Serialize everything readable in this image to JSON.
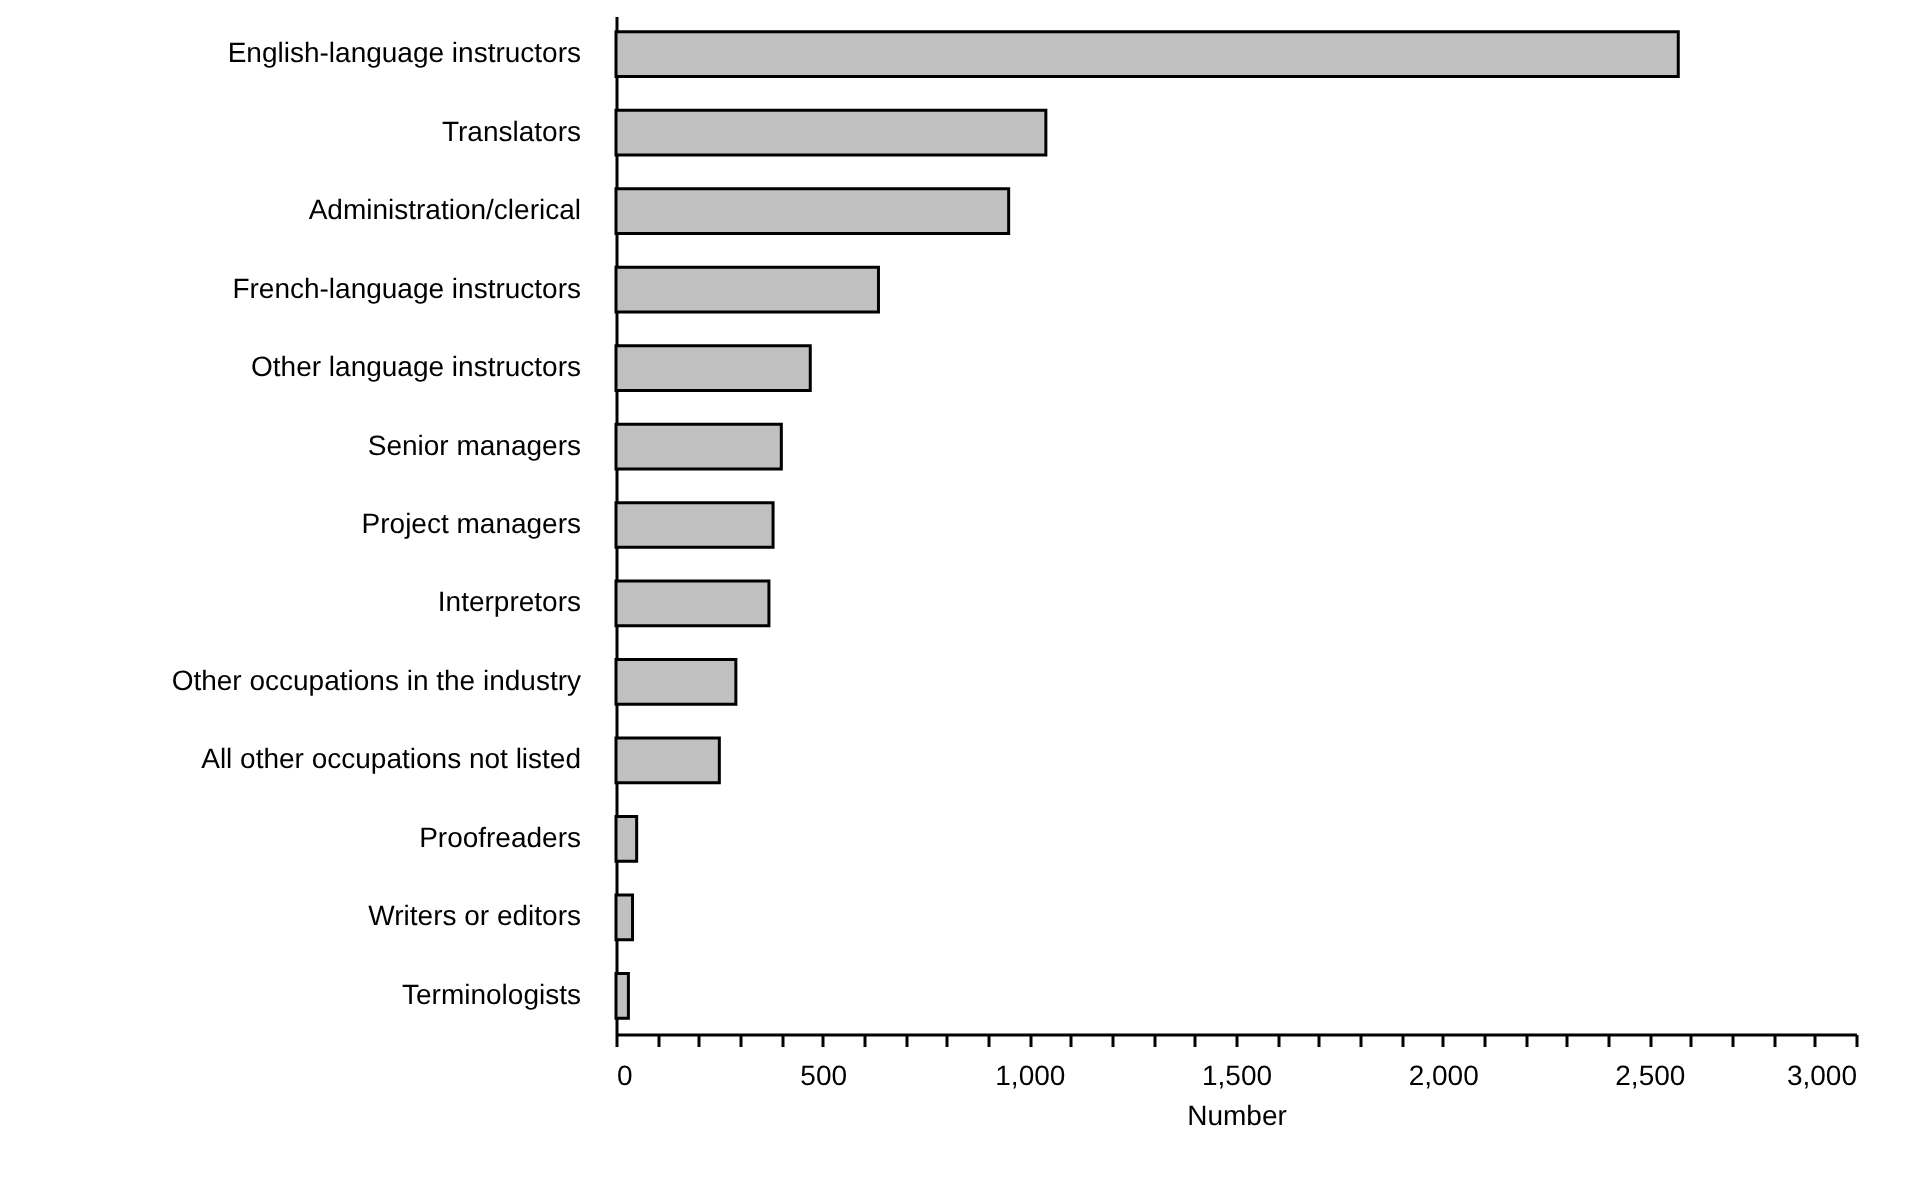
{
  "chart_data": {
    "type": "bar",
    "orientation": "horizontal",
    "xlabel": "Number",
    "categories": [
      "English-language instructors",
      "Translators",
      "Administration/clerical",
      "French-language instructors",
      "Other language instructors",
      "Senior managers",
      "Project managers",
      "Interpretors",
      "Other occupations in the industry",
      "All other occupations not listed",
      "Proofreaders",
      "Writers or editors",
      "Terminologists"
    ],
    "values": [
      2570,
      1040,
      950,
      635,
      470,
      400,
      380,
      370,
      290,
      250,
      50,
      40,
      30
    ],
    "color": "#c0c0c0",
    "xlim": [
      0,
      3000
    ],
    "xticks": [
      0,
      {
        "value": 100,
        "label": null
      },
      {
        "value": 200,
        "label": null
      },
      {
        "value": 300,
        "label": null
      },
      {
        "value": 400,
        "label": null
      },
      500,
      {
        "value": 600,
        "label": null
      },
      {
        "value": 700,
        "label": null
      },
      {
        "value": 800,
        "label": null
      },
      {
        "value": 900,
        "label": null
      },
      {
        "value": 1000,
        "label": "1,000"
      },
      {
        "value": 1100,
        "label": null
      },
      {
        "value": 1200,
        "label": null
      },
      {
        "value": 1300,
        "label": null
      },
      {
        "value": 1400,
        "label": null
      },
      {
        "value": 1500,
        "label": "1,500"
      },
      {
        "value": 1600,
        "label": null
      },
      {
        "value": 1700,
        "label": null
      },
      {
        "value": 1800,
        "label": null
      },
      {
        "value": 1900,
        "label": null
      },
      {
        "value": 2000,
        "label": "2,000"
      },
      {
        "value": 2100,
        "label": null
      },
      {
        "value": 2200,
        "label": null
      },
      {
        "value": 2300,
        "label": null
      },
      {
        "value": 2400,
        "label": null
      },
      {
        "value": 2500,
        "label": "2,500"
      },
      {
        "value": 2600,
        "label": null
      },
      {
        "value": 2700,
        "label": null
      },
      {
        "value": 2800,
        "label": null
      },
      {
        "value": 2900,
        "label": null
      },
      {
        "value": 3000,
        "label": "3,000"
      }
    ],
    "grid": false
  }
}
